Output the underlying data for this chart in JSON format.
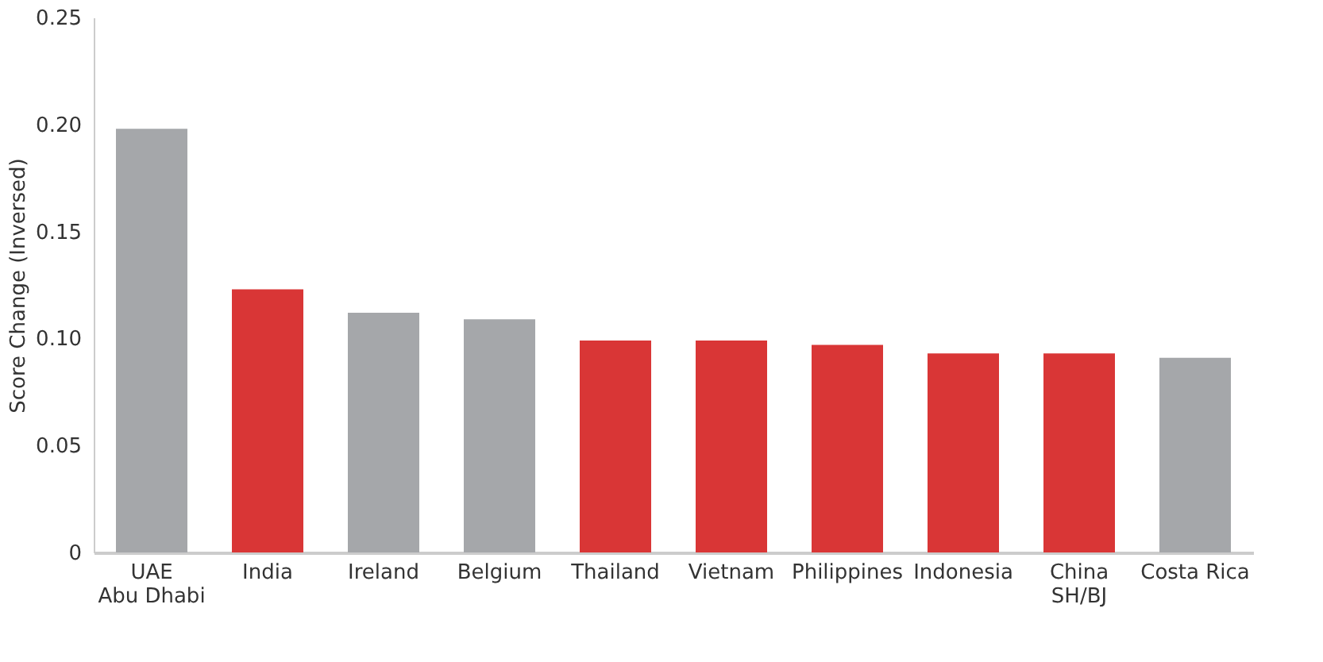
{
  "chart_data": {
    "type": "bar",
    "ylabel": "Score Change (Inversed)",
    "categories": [
      "UAE\nAbu Dhabi",
      "India",
      "Ireland",
      "Belgium",
      "Thailand",
      "Vietnam",
      "Philippines",
      "Indonesia",
      "China\nSH/BJ",
      "Costa Rica"
    ],
    "values": [
      0.198,
      0.123,
      0.112,
      0.109,
      0.099,
      0.099,
      0.097,
      0.093,
      0.093,
      0.091
    ],
    "colors": [
      "#a5a7aa",
      "#d93636",
      "#a5a7aa",
      "#a5a7aa",
      "#d93636",
      "#d93636",
      "#d93636",
      "#d93636",
      "#d93636",
      "#a5a7aa"
    ],
    "ylim": [
      0,
      0.25
    ],
    "yticks": [
      {
        "value": 0,
        "label": "0"
      },
      {
        "value": 0.05,
        "label": "0.05"
      },
      {
        "value": 0.1,
        "label": "0.10"
      },
      {
        "value": 0.15,
        "label": "0.15"
      },
      {
        "value": 0.2,
        "label": "0.20"
      },
      {
        "value": 0.25,
        "label": "0.25"
      }
    ]
  }
}
